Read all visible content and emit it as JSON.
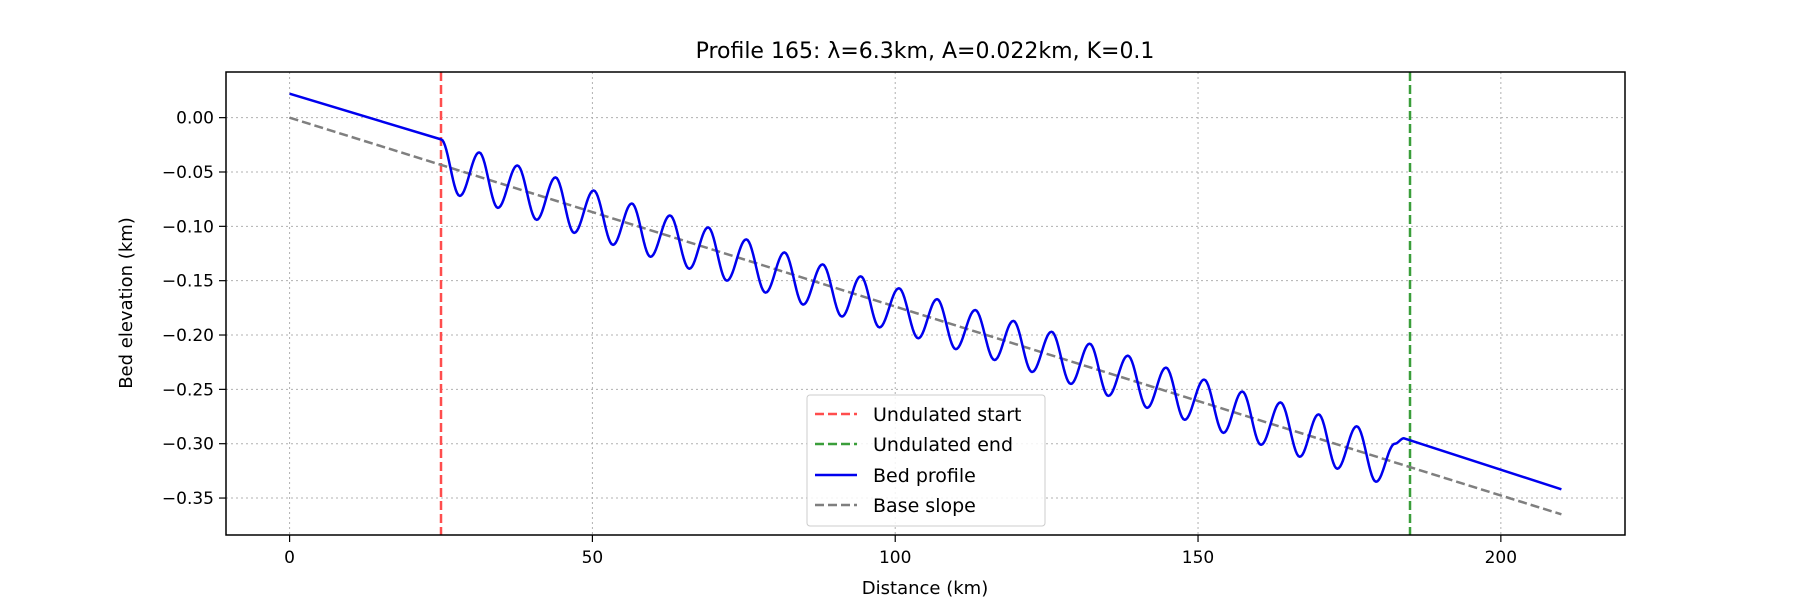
{
  "chart_data": {
    "type": "line",
    "title": "Profile 165: λ=6.3km, A=0.022km, K=0.1",
    "xlabel": "Distance (km)",
    "ylabel": "Bed elevation (km)",
    "xlim": [
      -10.5,
      220.5
    ],
    "ylim": [
      -0.384,
      0.042
    ],
    "grid": true,
    "x_ticks": [
      0,
      50,
      100,
      150,
      200
    ],
    "y_ticks": [
      0.0,
      -0.05,
      -0.1,
      -0.15,
      -0.2,
      -0.25,
      -0.3,
      -0.35
    ],
    "x_tick_labels": [
      "0",
      "50",
      "100",
      "150",
      "200"
    ],
    "y_tick_labels": [
      "0.00",
      "−0.05",
      "−0.10",
      "−0.15",
      "−0.20",
      "−0.25",
      "−0.30",
      "−0.35"
    ],
    "legend_position": "lower center",
    "vlines": [
      {
        "name": "Undulated start",
        "x": 25,
        "color": "#ff4d4d",
        "style": "dashed"
      },
      {
        "name": "Undulated end",
        "x": 185,
        "color": "#3a9e3a",
        "style": "dashed"
      }
    ],
    "series": [
      {
        "name": "Bed profile",
        "color": "#0000ee",
        "style": "solid",
        "x": [
          0,
          25,
          28.1,
          31.3,
          34.4,
          37.6,
          40.8,
          43.9,
          47.0,
          50.2,
          53.4,
          56.5,
          59.6,
          62.8,
          66.0,
          69.1,
          72.2,
          75.4,
          78.6,
          81.7,
          84.8,
          88.0,
          91.2,
          94.3,
          97.4,
          100.6,
          103.8,
          106.9,
          110.0,
          113.2,
          116.4,
          119.5,
          122.6,
          125.8,
          129.0,
          132.1,
          135.2,
          138.4,
          141.6,
          144.7,
          147.8,
          151.0,
          154.2,
          157.3,
          160.4,
          163.6,
          166.8,
          169.9,
          173.0,
          176.2,
          179.4,
          182.5,
          184,
          210
        ],
        "y": [
          0.022,
          -0.02,
          -0.072,
          -0.032,
          -0.083,
          -0.044,
          -0.094,
          -0.055,
          -0.106,
          -0.067,
          -0.117,
          -0.079,
          -0.128,
          -0.09,
          -0.139,
          -0.101,
          -0.15,
          -0.112,
          -0.161,
          -0.124,
          -0.172,
          -0.135,
          -0.183,
          -0.146,
          -0.193,
          -0.157,
          -0.203,
          -0.167,
          -0.213,
          -0.177,
          -0.223,
          -0.187,
          -0.234,
          -0.197,
          -0.245,
          -0.208,
          -0.256,
          -0.219,
          -0.267,
          -0.23,
          -0.278,
          -0.241,
          -0.29,
          -0.252,
          -0.301,
          -0.262,
          -0.312,
          -0.273,
          -0.323,
          -0.284,
          -0.335,
          -0.3,
          -0.295,
          -0.342
        ]
      },
      {
        "name": "Base slope",
        "color": "#7f7f7f",
        "style": "dashed",
        "x": [
          0,
          210
        ],
        "y": [
          0.0,
          -0.365
        ]
      }
    ],
    "legend": [
      {
        "label": "Undulated start",
        "color": "#ff4d4d",
        "style": "dashed"
      },
      {
        "label": "Undulated end",
        "color": "#3a9e3a",
        "style": "dashed"
      },
      {
        "label": "Bed profile",
        "color": "#0000ee",
        "style": "solid"
      },
      {
        "label": "Base slope",
        "color": "#7f7f7f",
        "style": "dashed"
      }
    ]
  }
}
